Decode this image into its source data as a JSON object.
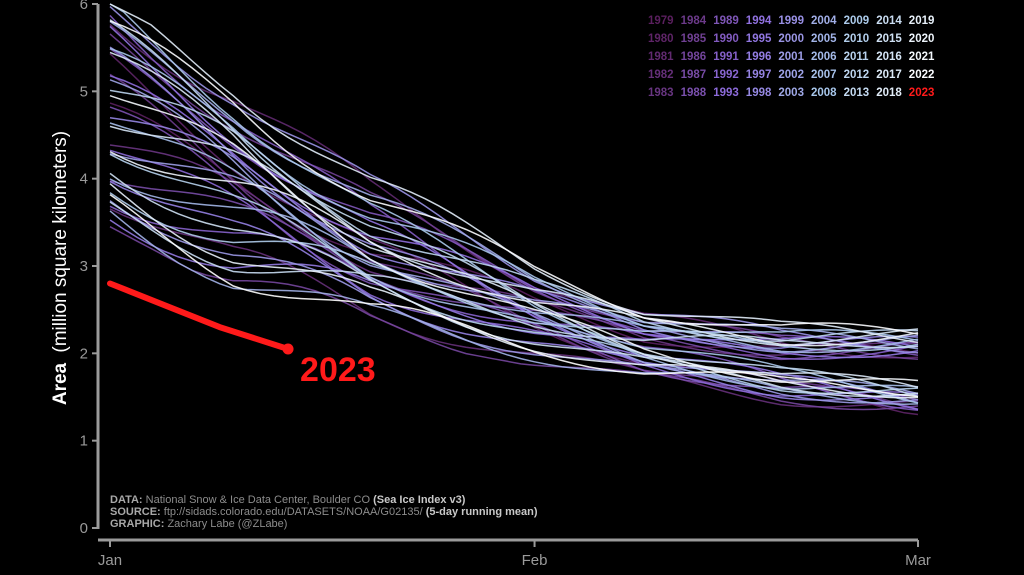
{
  "chart_data": {
    "type": "line",
    "ylabel_bold": "Area",
    "ylabel_rest": "(million square kilometers)",
    "ylim": [
      0,
      6
    ],
    "yticks": [
      0,
      1,
      2,
      3,
      4,
      5,
      6
    ],
    "xlim": [
      1,
      60
    ],
    "xticks": [
      {
        "day": 1,
        "label": "Jan"
      },
      {
        "day": 32,
        "label": "Feb"
      },
      {
        "day": 60,
        "label": "Mar"
      }
    ],
    "grid": false,
    "legend_position": "top-right",
    "legend_rows": [
      [
        "1979",
        "1984",
        "1989",
        "1994",
        "1999",
        "2004",
        "2009",
        "2014",
        "2019"
      ],
      [
        "1980",
        "1985",
        "1990",
        "1995",
        "2000",
        "2005",
        "2010",
        "2015",
        "2020"
      ],
      [
        "1981",
        "1986",
        "1991",
        "1996",
        "2001",
        "2006",
        "2011",
        "2016",
        "2021"
      ],
      [
        "1982",
        "1987",
        "1992",
        "1997",
        "2002",
        "2007",
        "2012",
        "2017",
        "2022"
      ],
      [
        "1983",
        "1988",
        "1993",
        "1998",
        "2003",
        "2008",
        "2013",
        "2018",
        "2023"
      ]
    ],
    "color_scale": {
      "start": "#5a1f5e",
      "mid": "#8f6fe0",
      "late": "#a8c8ea",
      "end": "#ffffff",
      "highlight": "#ff1a1a"
    },
    "series_2023": {
      "name": "2023",
      "x": [
        1,
        5,
        9,
        13,
        14
      ],
      "y": [
        2.8,
        2.55,
        2.3,
        2.1,
        2.05
      ]
    },
    "annotation": "2023",
    "historical_envelope": {
      "x": [
        1,
        10,
        20,
        32,
        40,
        50,
        60
      ],
      "upper": [
        6.0,
        5.3,
        4.2,
        3.2,
        2.75,
        2.55,
        2.55
      ],
      "lower": [
        3.45,
        2.7,
        2.2,
        1.85,
        1.6,
        1.4,
        1.3
      ]
    }
  },
  "credits": {
    "data_label": "DATA:",
    "data_text": "National Snow & Ice Data Center, Boulder CO",
    "data_strong": "(Sea Ice Index v3)",
    "source_label": "SOURCE:",
    "source_text": "ftp://sidads.colorado.edu/DATASETS/NOAA/G02135/",
    "source_strong": "(5-day running mean)",
    "graphic_label": "GRAPHIC:",
    "graphic_text": "Zachary Labe (@ZLabe)"
  }
}
